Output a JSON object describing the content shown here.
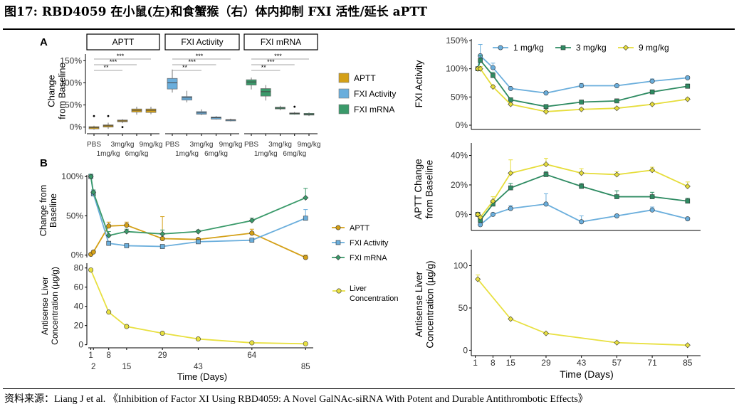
{
  "title": "图17: RBD4059 在小鼠(左)和食蟹猴（右）体内抑制 FXI 活性/延长 aPTT",
  "source": "资料来源：Liang J et al. 《Inhibition of Factor XI Using RBD4059: A Novel GalNAc-siRNA With Potent and Durable Antithrombotic Effects》",
  "colors": {
    "aptt": "#d4a017",
    "fxi_activity": "#6aaedc",
    "fxi_mrna": "#3a9a6a",
    "liver": "#e8e040",
    "one": "#6aaedc",
    "three": "#2e8b62",
    "nine": "#e6dd3a"
  },
  "panel_labels": {
    "a": "A",
    "b": "B"
  },
  "chart_data": [
    {
      "id": "A",
      "type": "box",
      "facets": [
        "APTT",
        "FXI Activity",
        "FXI mRNA"
      ],
      "ylabel": "Change\nfrom Baseline",
      "ylabel_lines": [
        "Change",
        "from Baseline"
      ],
      "ylim": [
        -15,
        165
      ],
      "yticks": [
        "0%",
        "50%",
        "100%",
        "150%"
      ],
      "ytick_values": [
        0,
        50,
        100,
        150
      ],
      "categories": [
        "PBS",
        "1mg/kg",
        "3mg/kg",
        "6mg/kg",
        "9mg/kg"
      ],
      "legend": [
        "APTT",
        "FXI Activity",
        "FXI mRNA"
      ],
      "significance": [
        "**",
        "***",
        "***"
      ],
      "boxes": {
        "APTT": [
          {
            "min": -6,
            "q1": -4,
            "med": -1,
            "q3": 1,
            "max": 3,
            "outliers": [
              25
            ]
          },
          {
            "min": -4,
            "q1": 0,
            "med": 3,
            "q3": 5,
            "max": 10,
            "outliers": [
              25
            ]
          },
          {
            "min": 9,
            "q1": 12,
            "med": 14,
            "q3": 16,
            "max": 18,
            "outliers": [
              0
            ]
          },
          {
            "min": 28,
            "q1": 34,
            "med": 38,
            "q3": 41,
            "max": 46,
            "outliers": []
          },
          {
            "min": 29,
            "q1": 33,
            "med": 38,
            "q3": 41,
            "max": 46,
            "outliers": []
          }
        ],
        "FXI Activity": [
          {
            "min": 78,
            "q1": 86,
            "med": 100,
            "q3": 110,
            "max": 130,
            "outliers": []
          },
          {
            "min": 56,
            "q1": 61,
            "med": 66,
            "q3": 69,
            "max": 82,
            "outliers": []
          },
          {
            "min": 27,
            "q1": 29,
            "med": 32,
            "q3": 35,
            "max": 40,
            "outliers": []
          },
          {
            "min": 17,
            "q1": 18,
            "med": 21,
            "q3": 23,
            "max": 25,
            "outliers": []
          },
          {
            "min": 13,
            "q1": 14,
            "med": 16,
            "q3": 17,
            "max": 19,
            "outliers": []
          }
        ],
        "FXI mRNA": [
          {
            "min": 85,
            "q1": 95,
            "med": 102,
            "q3": 107,
            "max": 112,
            "outliers": []
          },
          {
            "min": 60,
            "q1": 70,
            "med": 80,
            "q3": 87,
            "max": 95,
            "outliers": []
          },
          {
            "min": 38,
            "q1": 41,
            "med": 43,
            "q3": 45,
            "max": 48,
            "outliers": []
          },
          {
            "min": 28,
            "q1": 29,
            "med": 31,
            "q3": 32,
            "max": 34,
            "outliers": [
              46
            ]
          },
          {
            "min": 25,
            "q1": 27,
            "med": 29,
            "q3": 31,
            "max": 33,
            "outliers": []
          }
        ]
      }
    },
    {
      "id": "B-top",
      "type": "line",
      "ylabel_lines": [
        "Change from",
        "Baseline"
      ],
      "ylim": [
        0,
        100
      ],
      "yticks": [
        "0%",
        "50%",
        "100%"
      ],
      "ytick_values": [
        0,
        50,
        100
      ],
      "xlim": [
        0,
        88
      ],
      "series": [
        {
          "name": "APTT",
          "x": [
            1,
            2,
            8,
            15,
            29,
            43,
            64,
            85
          ],
          "y": [
            1,
            4,
            37,
            38,
            21,
            20,
            28,
            -3
          ],
          "err": [
            0,
            0,
            5,
            4,
            28,
            0,
            5,
            3
          ]
        },
        {
          "name": "FXI Activity",
          "x": [
            1,
            2,
            8,
            15,
            29,
            43,
            64,
            85
          ],
          "y": [
            100,
            78,
            15,
            12,
            11,
            17,
            19,
            47
          ],
          "err": [
            3,
            4,
            0,
            0,
            0,
            0,
            0,
            11
          ]
        },
        {
          "name": "FXI mRNA",
          "x": [
            1,
            2,
            8,
            15,
            29,
            43,
            64,
            85
          ],
          "y": [
            100,
            80,
            25,
            30,
            27,
            30,
            44,
            73
          ],
          "err": [
            3,
            3,
            5,
            3,
            5,
            2,
            3,
            12
          ]
        }
      ]
    },
    {
      "id": "B-bottom",
      "type": "line",
      "ylabel_lines": [
        "Antisense Liver",
        "Concentration (µg/g)"
      ],
      "xlabel": "Time (Days)",
      "ylim": [
        0,
        85
      ],
      "yticks": [
        "0",
        "20",
        "40",
        "60",
        "80"
      ],
      "ytick_values": [
        0,
        20,
        40,
        60,
        80
      ],
      "xlim": [
        0,
        88
      ],
      "xticks_upper": [
        "1",
        "8",
        "29",
        "64"
      ],
      "xticks_upper_values": [
        1,
        8,
        29,
        64
      ],
      "xticks_lower": [
        "2",
        "15",
        "43",
        "85"
      ],
      "xticks_lower_values": [
        2,
        15,
        43,
        85
      ],
      "series": [
        {
          "name": "Liver Concentration",
          "x": [
            1,
            8,
            15,
            29,
            43,
            64,
            85
          ],
          "y": [
            78,
            34,
            19,
            12,
            6,
            2,
            1
          ]
        }
      ]
    },
    {
      "id": "R1",
      "type": "line",
      "ylabel": "FXI Activity",
      "ylim": [
        0,
        150
      ],
      "yticks": [
        "0%",
        "50%",
        "100%",
        "150%"
      ],
      "ytick_values": [
        0,
        50,
        100,
        150
      ],
      "xlim": [
        0,
        89
      ],
      "legend": [
        "1 mg/kg",
        "3 mg/kg",
        "9 mg/kg"
      ],
      "series": [
        {
          "name": "1 mg/kg",
          "x": [
            2,
            3,
            8,
            15,
            29,
            43,
            57,
            71,
            85
          ],
          "y": [
            100,
            123,
            102,
            65,
            57,
            70,
            70,
            78,
            84
          ],
          "err": [
            0,
            20,
            8,
            0,
            3,
            4,
            2,
            4,
            2
          ]
        },
        {
          "name": "3 mg/kg",
          "x": [
            2,
            3,
            8,
            15,
            29,
            43,
            57,
            71,
            85
          ],
          "y": [
            100,
            115,
            88,
            45,
            33,
            41,
            43,
            59,
            69
          ],
          "err": [
            0,
            8,
            6,
            3,
            2,
            3,
            2,
            3,
            4
          ]
        },
        {
          "name": "9 mg/kg",
          "x": [
            2,
            3,
            8,
            15,
            29,
            43,
            57,
            71,
            85
          ],
          "y": [
            100,
            100,
            68,
            37,
            24,
            28,
            30,
            37,
            46
          ],
          "err": [
            0,
            4,
            3,
            2,
            2,
            2,
            2,
            2,
            2
          ]
        }
      ]
    },
    {
      "id": "R2",
      "type": "line",
      "ylabel_lines": [
        "APTT Change",
        "from Baseline"
      ],
      "ylim": [
        -8,
        47
      ],
      "yticks": [
        "0%",
        "20%",
        "40%"
      ],
      "ytick_values": [
        0,
        20,
        40
      ],
      "xlim": [
        0,
        89
      ],
      "series": [
        {
          "name": "1 mg/kg",
          "x": [
            2,
            3,
            8,
            15,
            29,
            43,
            57,
            71,
            85
          ],
          "y": [
            0,
            -7,
            0,
            4,
            7,
            -5,
            -1,
            3,
            -3
          ],
          "err": [
            0,
            0,
            0,
            2,
            7,
            4,
            0,
            2,
            0
          ]
        },
        {
          "name": "3 mg/kg",
          "x": [
            2,
            3,
            8,
            15,
            29,
            43,
            57,
            71,
            85
          ],
          "y": [
            0,
            -4,
            7,
            18,
            27,
            19,
            12,
            12,
            9
          ],
          "err": [
            0,
            0,
            2,
            3,
            2,
            2,
            4,
            3,
            2
          ]
        },
        {
          "name": "9 mg/kg",
          "x": [
            2,
            3,
            8,
            15,
            29,
            43,
            57,
            71,
            85
          ],
          "y": [
            0,
            -2,
            9,
            28,
            34,
            28,
            27,
            30,
            19
          ],
          "err": [
            0,
            0,
            3,
            9,
            4,
            3,
            2,
            2,
            3
          ]
        }
      ]
    },
    {
      "id": "R3",
      "type": "line",
      "ylabel_lines": [
        "Antisense Liver",
        "Concentration (µg/g)"
      ],
      "xlabel": "Time (Days)",
      "ylim": [
        -3,
        108
      ],
      "yticks": [
        "0",
        "50",
        "100"
      ],
      "ytick_values": [
        0,
        50,
        100
      ],
      "xlim": [
        0,
        89
      ],
      "xticks": [
        "1",
        "8",
        "15",
        "29",
        "43",
        "57",
        "71",
        "85"
      ],
      "xtick_values": [
        1,
        8,
        15,
        29,
        43,
        57,
        71,
        85
      ],
      "series": [
        {
          "name": "liver",
          "x": [
            2,
            15,
            29,
            57,
            85
          ],
          "y": [
            84,
            37,
            20,
            9,
            6
          ],
          "err": [
            5,
            0,
            0,
            0,
            0
          ]
        }
      ]
    }
  ]
}
